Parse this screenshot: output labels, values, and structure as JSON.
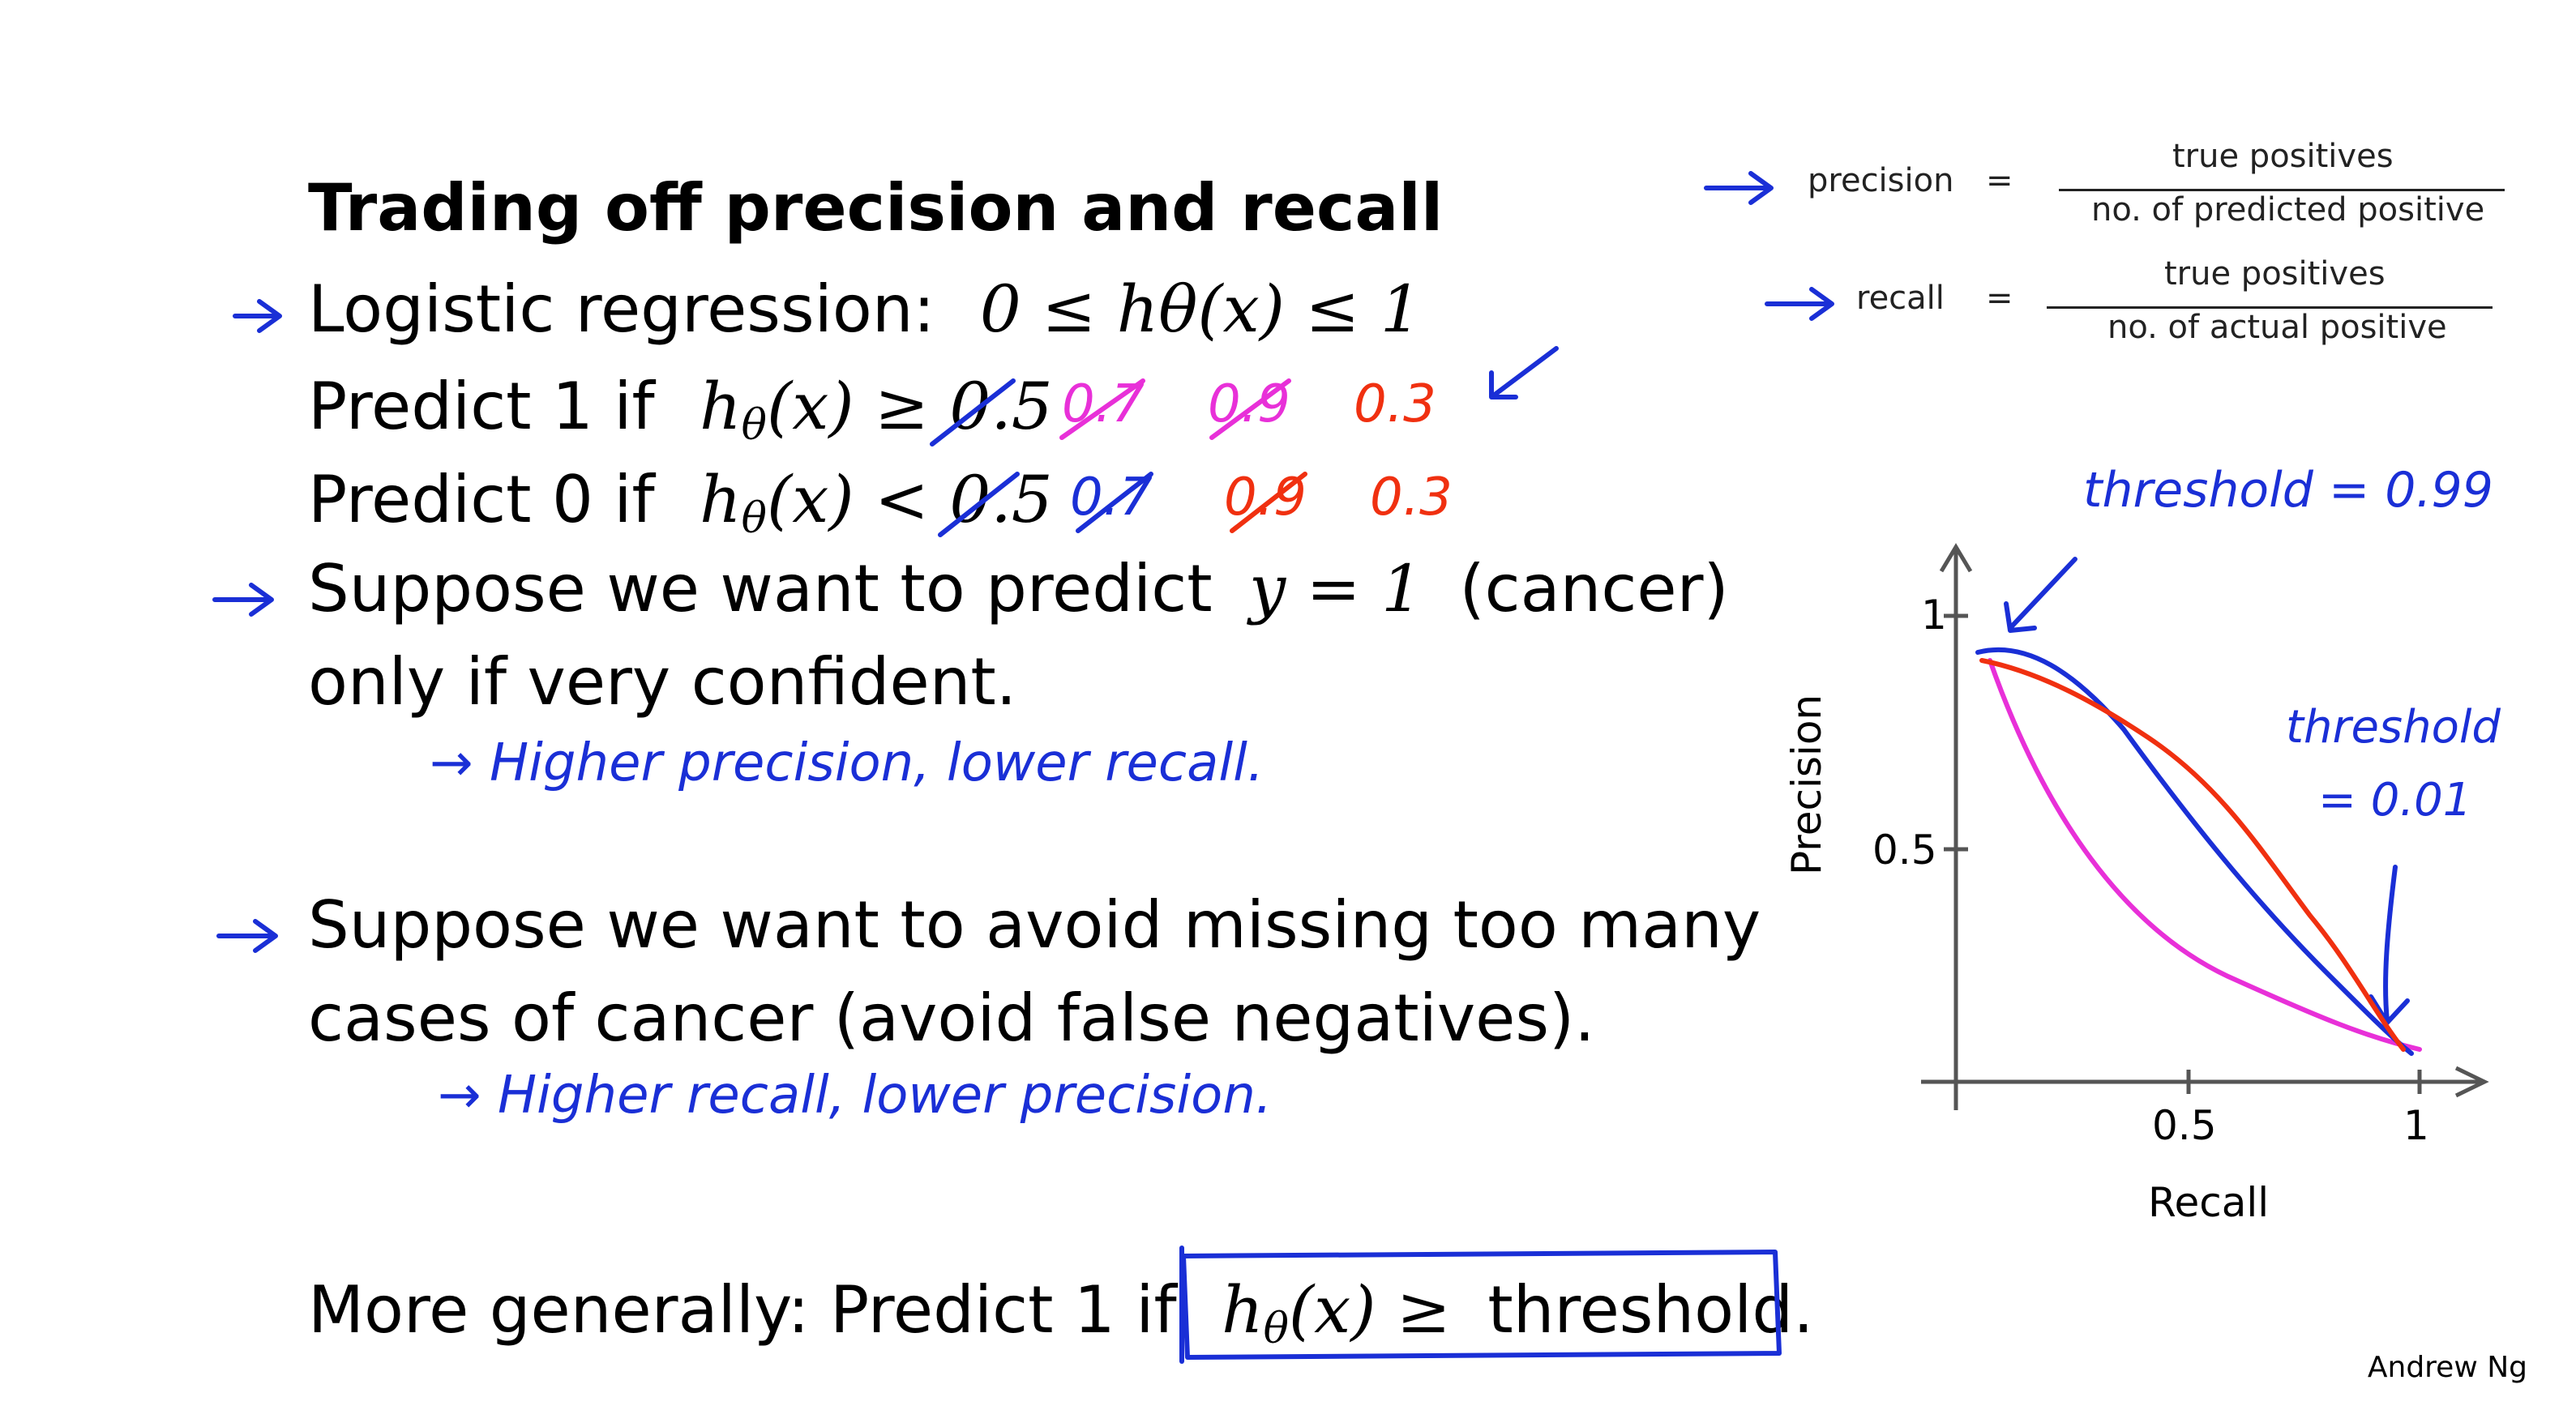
{
  "slide": {
    "title": "Trading off precision and recall",
    "logistic_label": "Logistic regression:",
    "logistic_math": "0 ≤ hθ(x) ≤ 1",
    "predict1_label": "Predict 1 if",
    "predict1_math_h": "h",
    "predict1_math_rest": "(x) ≥ 0.5",
    "predict0_label": "Predict 0 if",
    "predict0_math_rest": "(x) < 0.5",
    "theta": "θ",
    "suppose1_a": "Suppose we want to predict",
    "suppose1_math": "y = 1",
    "suppose1_b": "(cancer)",
    "suppose1_c": "only if very confident.",
    "suppose2_a": "Suppose we want to avoid missing too many",
    "suppose2_b": "cases of cancer (avoid false negatives).",
    "general_label": "More generally: Predict 1 if",
    "general_math": "(x) ≥",
    "general_threshold": "threshold.",
    "author": "Andrew Ng"
  },
  "handwritten": {
    "p1_values": [
      "0.7",
      "0.9",
      "0.3"
    ],
    "p0_values": [
      "0.7",
      "0.9",
      "0.3"
    ],
    "note1": "→ Higher precision, lower recall.",
    "note2": "→ Higher recall, lower precision.",
    "threshold_high": "threshold = 0.99",
    "threshold_low_a": "threshold",
    "threshold_low_b": "= 0.01"
  },
  "formulas": {
    "precision_label": "precision",
    "precision_num": "true positives",
    "precision_den": "no. of predicted positive",
    "recall_label": "recall",
    "recall_num": "true positives",
    "recall_den": "no. of actual positive",
    "equals": "="
  },
  "chart": {
    "ylabel": "Precision",
    "xlabel": "Recall",
    "y_ticks": [
      "1",
      "0.5"
    ],
    "x_ticks": [
      "0.5",
      "1"
    ]
  },
  "colors": {
    "ink_blue": "#1a2fd6",
    "ink_red": "#f03010",
    "ink_pink": "#e830d8"
  }
}
